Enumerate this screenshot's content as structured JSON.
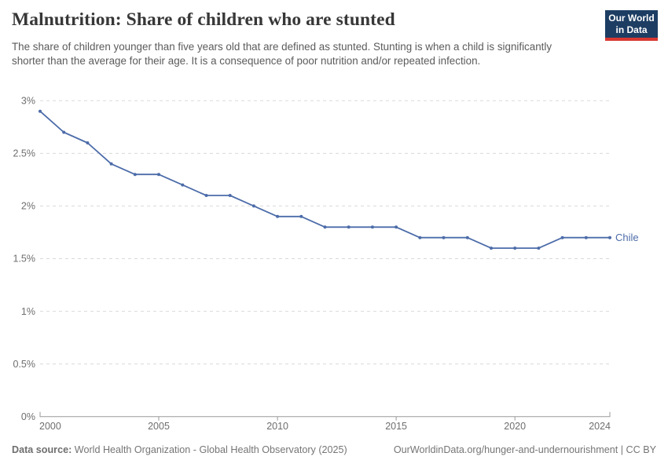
{
  "header": {
    "title": "Malnutrition: Share of children who are stunted",
    "subtitle": "The share of children younger than five years old that are defined as stunted. Stunting is when a child is significantly shorter than the average for their age. It is a consequence of poor nutrition and/or repeated infection.",
    "logo": {
      "line1": "Our World",
      "line2": "in Data",
      "background": "#1d3d63",
      "accent": "#d83731",
      "text_color": "#ffffff"
    }
  },
  "chart_data": {
    "type": "line",
    "title": "Malnutrition: Share of children who are stunted",
    "xlabel": "",
    "ylabel": "",
    "x": [
      2000,
      2001,
      2002,
      2003,
      2004,
      2005,
      2006,
      2007,
      2008,
      2009,
      2010,
      2011,
      2012,
      2013,
      2014,
      2015,
      2016,
      2017,
      2018,
      2019,
      2020,
      2021,
      2022,
      2023,
      2024
    ],
    "series": [
      {
        "name": "Chile",
        "color": "#4c6ca9",
        "values": [
          2.9,
          2.7,
          2.6,
          2.4,
          2.3,
          2.3,
          2.2,
          2.1,
          2.1,
          2.0,
          1.9,
          1.9,
          1.8,
          1.8,
          1.8,
          1.8,
          1.7,
          1.7,
          1.7,
          1.6,
          1.6,
          1.6,
          1.7,
          1.7,
          1.7
        ]
      }
    ],
    "xlim": [
      2000,
      2024
    ],
    "ylim": [
      0,
      3
    ],
    "x_ticks": [
      2000,
      2005,
      2010,
      2015,
      2020,
      2024
    ],
    "y_ticks": [
      0,
      0.5,
      1,
      1.5,
      2,
      2.5,
      3
    ],
    "y_tick_labels": [
      "0%",
      "0.5%",
      "1%",
      "1.5%",
      "2%",
      "2.5%",
      "3%"
    ],
    "grid": "horizontal-dashed",
    "legend_position": "end-of-line",
    "style": {
      "grid_color": "#d9d9d9",
      "axis_color": "#9a9a9a",
      "tick_text_color": "#6e6e6e",
      "marker_radius": 2,
      "line_width": 1.8
    }
  },
  "footer": {
    "source_label": "Data source:",
    "source_text": "World Health Organization - Global Health Observatory (2025)",
    "note": "OurWorldinData.org/hunger-and-undernourishment | CC BY"
  }
}
